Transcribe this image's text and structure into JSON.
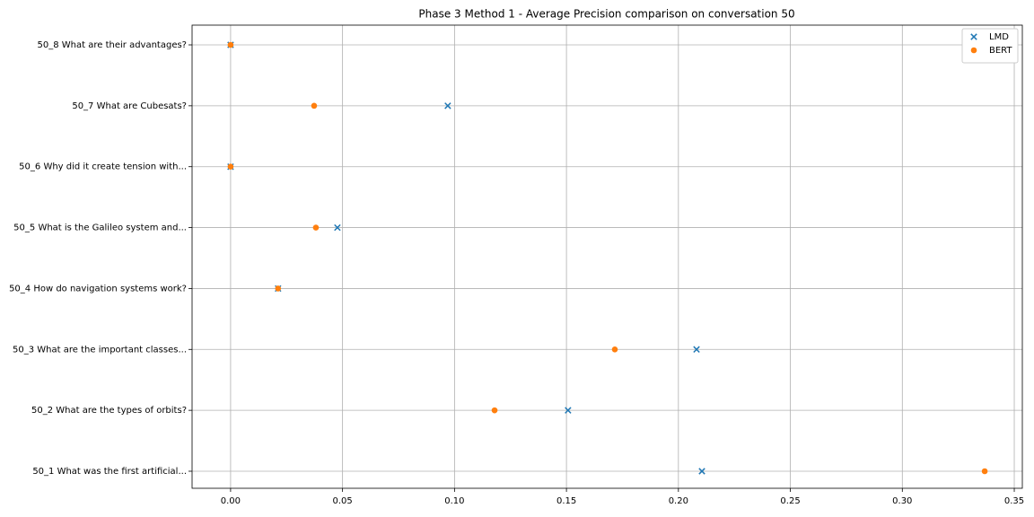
{
  "chart_data": {
    "type": "scatter",
    "title": "Phase 3 Method 1 - Average Precision comparison on conversation 50",
    "categories": [
      "50_1 What was the first artificial...",
      "50_2 What are the types of orbits?",
      "50_3 What are the important classes...",
      "50_4 How do navigation systems work?",
      "50_5 What is the Galileo system and...",
      "50_6 Why did it create tension with...",
      "50_7 What are Cubesats?",
      "50_8 What are their advantages?"
    ],
    "series": [
      {
        "name": "LMD",
        "color": "#1f77b4",
        "marker": "x",
        "values": [
          0.2105,
          0.1507,
          0.2081,
          0.0212,
          0.0477,
          0,
          0.097,
          0
        ]
      },
      {
        "name": "BERT",
        "color": "#ff7f0e",
        "marker": "o",
        "values": [
          0.3368,
          0.1179,
          0.1716,
          0.0212,
          0.0381,
          0,
          0.0373,
          0
        ]
      }
    ],
    "xlim": [
      -0.0172,
      0.3536
    ],
    "xticks": [
      {
        "value": 0,
        "label": "0.00"
      },
      {
        "value": 0.05,
        "label": "0.05"
      },
      {
        "value": 0.1,
        "label": "0.10"
      },
      {
        "value": 0.15,
        "label": "0.15"
      },
      {
        "value": 0.2,
        "label": "0.20"
      },
      {
        "value": 0.25,
        "label": "0.25"
      },
      {
        "value": 0.3,
        "label": "0.30"
      },
      {
        "value": 0.35,
        "label": "0.35"
      }
    ],
    "grid": true,
    "legend": "upper right"
  }
}
